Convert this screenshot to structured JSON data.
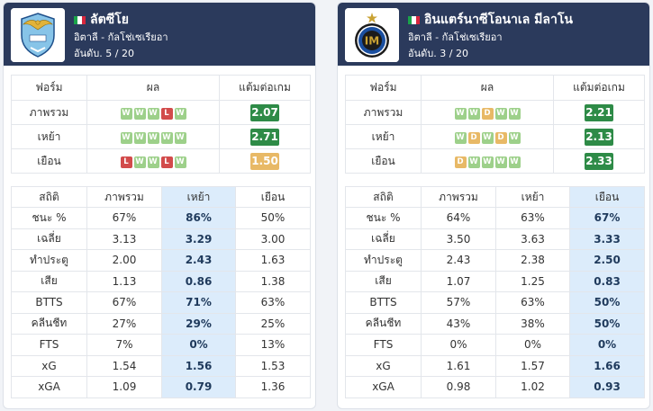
{
  "labels": {
    "form": "ฟอร์ม",
    "result": "ผล",
    "ppg": "แต้มต่อเกม",
    "stat": "สถิติ",
    "overall": "ภาพรวม",
    "home": "เหย้า",
    "away": "เยือน"
  },
  "colors": {
    "win": "#9dd08a",
    "draw": "#e8b966",
    "loss": "#d24b4b",
    "ppg_good": "#2e8b47",
    "ppg_mid": "#e8b966",
    "header": "#2b3a5c",
    "highlight": "#dcecfb"
  },
  "teams": [
    {
      "name": "ลัตซีโย",
      "league": "อิตาลี - กัลโช่เซเรียอา",
      "rank": "อันดับ. 5 / 20",
      "logo_icon": "lazio-eagle-crest-icon",
      "form": [
        {
          "label": "ภาพรวม",
          "results": [
            "W",
            "W",
            "W",
            "L",
            "W"
          ],
          "ppg": "2.07",
          "ppg_color": "g"
        },
        {
          "label": "เหย้า",
          "results": [
            "W",
            "W",
            "W",
            "W",
            "W"
          ],
          "ppg": "2.71",
          "ppg_color": "g"
        },
        {
          "label": "เยือน",
          "results": [
            "L",
            "W",
            "W",
            "L",
            "W"
          ],
          "ppg": "1.50",
          "ppg_color": "y"
        }
      ],
      "highlight_col": 1,
      "stats": [
        {
          "label": "ชนะ %",
          "values": [
            "67%",
            "86%",
            "50%"
          ]
        },
        {
          "label": "เฉลี่ย",
          "values": [
            "3.13",
            "3.29",
            "3.00"
          ]
        },
        {
          "label": "ทำประตู",
          "values": [
            "2.00",
            "2.43",
            "1.63"
          ]
        },
        {
          "label": "เสีย",
          "values": [
            "1.13",
            "0.86",
            "1.38"
          ]
        },
        {
          "label": "BTTS",
          "values": [
            "67%",
            "71%",
            "63%"
          ]
        },
        {
          "label": "คลีนชีท",
          "values": [
            "27%",
            "29%",
            "25%"
          ]
        },
        {
          "label": "FTS",
          "values": [
            "7%",
            "0%",
            "13%"
          ]
        },
        {
          "label": "xG",
          "values": [
            "1.54",
            "1.56",
            "1.53"
          ]
        },
        {
          "label": "xGA",
          "values": [
            "1.09",
            "0.79",
            "1.36"
          ]
        }
      ]
    },
    {
      "name": "อินแตร์นาซีโอนาเล มีลาโน",
      "league": "อิตาลี - กัลโช่เซเรียอา",
      "rank": "อันดับ. 3 / 20",
      "logo_icon": "inter-milan-crest-icon",
      "form": [
        {
          "label": "ภาพรวม",
          "results": [
            "W",
            "W",
            "D",
            "W",
            "W"
          ],
          "ppg": "2.21",
          "ppg_color": "g"
        },
        {
          "label": "เหย้า",
          "results": [
            "W",
            "D",
            "W",
            "D",
            "W"
          ],
          "ppg": "2.13",
          "ppg_color": "g"
        },
        {
          "label": "เยือน",
          "results": [
            "D",
            "W",
            "W",
            "W",
            "W"
          ],
          "ppg": "2.33",
          "ppg_color": "g"
        }
      ],
      "highlight_col": 2,
      "stats": [
        {
          "label": "ชนะ %",
          "values": [
            "64%",
            "63%",
            "67%"
          ]
        },
        {
          "label": "เฉลี่ย",
          "values": [
            "3.50",
            "3.63",
            "3.33"
          ]
        },
        {
          "label": "ทำประตู",
          "values": [
            "2.43",
            "2.38",
            "2.50"
          ]
        },
        {
          "label": "เสีย",
          "values": [
            "1.07",
            "1.25",
            "0.83"
          ]
        },
        {
          "label": "BTTS",
          "values": [
            "57%",
            "63%",
            "50%"
          ]
        },
        {
          "label": "คลีนชีท",
          "values": [
            "43%",
            "38%",
            "50%"
          ]
        },
        {
          "label": "FTS",
          "values": [
            "0%",
            "0%",
            "0%"
          ]
        },
        {
          "label": "xG",
          "values": [
            "1.61",
            "1.57",
            "1.66"
          ]
        },
        {
          "label": "xGA",
          "values": [
            "0.98",
            "1.02",
            "0.93"
          ]
        }
      ]
    }
  ]
}
